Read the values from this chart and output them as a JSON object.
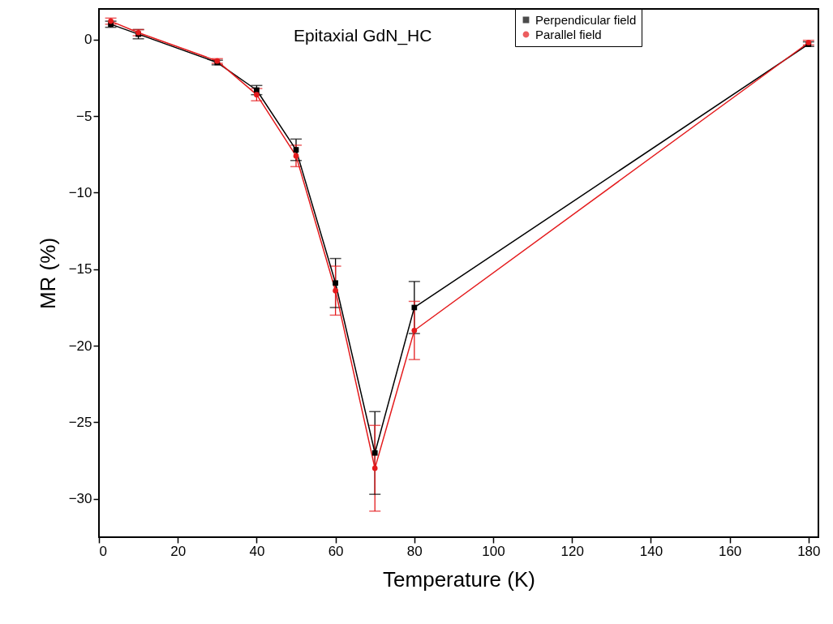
{
  "chart_data": {
    "type": "line",
    "xlabel": "Temperature (K)",
    "ylabel": "MR (%)",
    "annotations": [
      "Epitaxial GdN_HC"
    ],
    "x": [
      3,
      10,
      30,
      40,
      50,
      60,
      70,
      80,
      180
    ],
    "series": [
      {
        "name": "Perpendicular field",
        "color": "#000000",
        "marker": "square",
        "values": [
          1.0,
          0.35,
          -1.5,
          -3.3,
          -7.2,
          -15.9,
          -27.0,
          -17.5,
          -0.3
        ],
        "errors": [
          0.2,
          0.3,
          0.15,
          0.3,
          0.7,
          1.6,
          2.7,
          1.7,
          0.15
        ]
      },
      {
        "name": "Parallel field",
        "color": "#e41a1c",
        "marker": "circle",
        "values": [
          1.2,
          0.45,
          -1.4,
          -3.6,
          -7.6,
          -16.4,
          -28.0,
          -19.0,
          -0.2
        ],
        "errors": [
          0.2,
          0.2,
          0.15,
          0.4,
          0.7,
          1.6,
          2.8,
          1.9,
          0.15
        ]
      }
    ],
    "xlim": [
      0,
      182.5
    ],
    "xticks": [
      0,
      20,
      40,
      60,
      80,
      100,
      120,
      140,
      160,
      180
    ],
    "ylim": [
      -32.5,
      2
    ],
    "yticks": [
      -30,
      -25,
      -20,
      -15,
      -10,
      -5,
      0
    ],
    "grid": false,
    "legend": "top right",
    "line_style": "solid"
  }
}
